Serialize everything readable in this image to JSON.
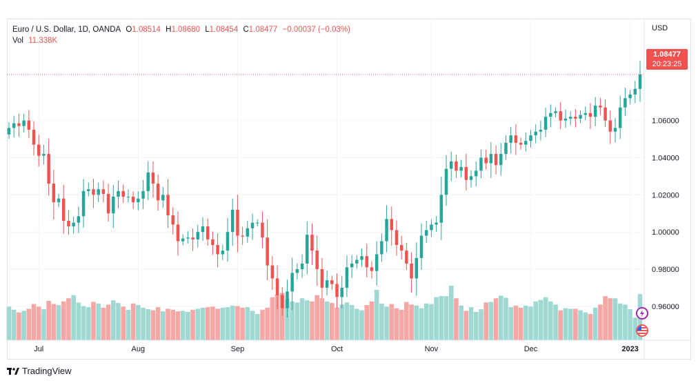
{
  "header": {
    "symbol": "Euro / U.S. Dollar, 1D, OANDA",
    "o_label": "O",
    "o_value": "1.08514",
    "h_label": "H",
    "h_value": "1.08680",
    "l_label": "L",
    "l_value": "1.08454",
    "c_label": "C",
    "c_value": "1.08477",
    "change": "−0.00037 (−0.03%)",
    "vol_label": "Vol",
    "vol_value": "11.338K"
  },
  "currency": "USD",
  "price_tag": {
    "price": "1.08477",
    "countdown": "20:23:25"
  },
  "footer": {
    "brand": "TradingView"
  },
  "colors": {
    "up": "#26a69a",
    "down": "#ef5350",
    "vol_up": "#9fd8d2",
    "vol_down": "#f5a7a5",
    "grid": "#f0f3fa"
  },
  "chart_data": {
    "type": "candlestick",
    "y_ticks": [
      "1.06000",
      "1.04000",
      "1.02000",
      "1.00000",
      "0.98000",
      "0.96000"
    ],
    "y_tick_values": [
      1.06,
      1.04,
      1.02,
      1.0,
      0.98,
      0.96
    ],
    "ylim": [
      0.9425,
      1.0955
    ],
    "x_ticks": [
      "Jul",
      "Aug",
      "Sep",
      "Oct",
      "Nov",
      "Dec",
      "2023"
    ],
    "x_tick_index": [
      6,
      26,
      46,
      66,
      85,
      105,
      125
    ],
    "last_close": 1.08477,
    "closes": [
      1.056,
      1.0585,
      1.057,
      1.06,
      1.055,
      1.047,
      1.041,
      1.042,
      1.026,
      1.016,
      1.018,
      1.006,
      1.003,
      1.005,
      1.0085,
      1.022,
      1.023,
      1.02,
      1.023,
      1.0205,
      1.01,
      1.019,
      1.022,
      1.019,
      1.019,
      1.016,
      1.018,
      1.022,
      1.032,
      1.026,
      1.017,
      1.02,
      1.009,
      1.004,
      0.995,
      0.9965,
      0.997,
      0.996,
      1.0,
      1.003,
      0.996,
      0.993,
      0.988,
      0.99,
      1.0,
      1.012,
      0.998,
      0.9975,
      1.002,
      1.005,
      1.005,
      0.997,
      0.982,
      0.975,
      0.966,
      0.959,
      0.968,
      0.978,
      0.98,
      0.983,
      0.9985,
      0.99,
      0.98,
      0.97,
      0.974,
      0.972,
      0.965,
      0.97,
      0.981,
      0.983,
      0.985,
      0.987,
      0.981,
      0.979,
      0.988,
      0.995,
      1.007,
      1.001,
      0.993,
      0.99,
      0.983,
      0.975,
      0.986,
      0.998,
      1.001,
      1.004,
      1.005,
      1.02,
      1.034,
      1.038,
      1.033,
      1.035,
      1.028,
      1.03,
      1.033,
      1.04,
      1.037,
      1.042,
      1.036,
      1.042,
      1.048,
      1.052,
      1.048,
      1.047,
      1.049,
      1.052,
      1.054,
      1.055,
      1.062,
      1.064,
      1.065,
      1.06,
      1.061,
      1.062,
      1.061,
      1.063,
      1.064,
      1.062,
      1.068,
      1.067,
      1.06,
      1.054,
      1.056,
      1.067,
      1.072,
      1.074,
      1.077,
      1.0848
    ],
    "volumes": [
      0.64,
      0.58,
      0.53,
      0.56,
      0.6,
      0.69,
      0.64,
      0.59,
      0.75,
      0.69,
      0.67,
      0.74,
      0.8,
      0.86,
      0.72,
      0.65,
      0.63,
      0.73,
      0.7,
      0.62,
      0.68,
      0.76,
      0.71,
      0.64,
      0.58,
      0.7,
      0.67,
      0.62,
      0.59,
      0.57,
      0.63,
      0.55,
      0.6,
      0.58,
      0.55,
      0.56,
      0.54,
      0.58,
      0.6,
      0.62,
      0.63,
      0.64,
      0.6,
      0.62,
      0.63,
      0.66,
      0.65,
      0.62,
      0.63,
      0.56,
      0.5,
      0.58,
      0.62,
      0.82,
      0.87,
      0.9,
      0.79,
      0.74,
      0.72,
      0.8,
      0.76,
      0.74,
      0.86,
      0.8,
      0.74,
      0.71,
      0.62,
      0.68,
      0.72,
      0.67,
      0.6,
      0.57,
      0.67,
      0.74,
      0.96,
      0.7,
      0.64,
      0.69,
      0.61,
      0.58,
      0.73,
      0.68,
      0.66,
      0.61,
      0.7,
      0.69,
      0.82,
      0.84,
      0.84,
      1.04,
      0.8,
      0.66,
      0.56,
      0.63,
      0.54,
      0.59,
      0.72,
      0.73,
      0.8,
      0.85,
      0.81,
      0.63,
      0.66,
      0.62,
      0.66,
      0.64,
      0.74,
      0.77,
      0.82,
      0.74,
      0.68,
      0.57,
      0.61,
      0.6,
      0.6,
      0.57,
      0.53,
      0.5,
      0.62,
      0.68,
      0.84,
      0.8,
      0.8,
      0.7,
      0.68,
      0.59,
      0.43,
      0.88
    ]
  }
}
